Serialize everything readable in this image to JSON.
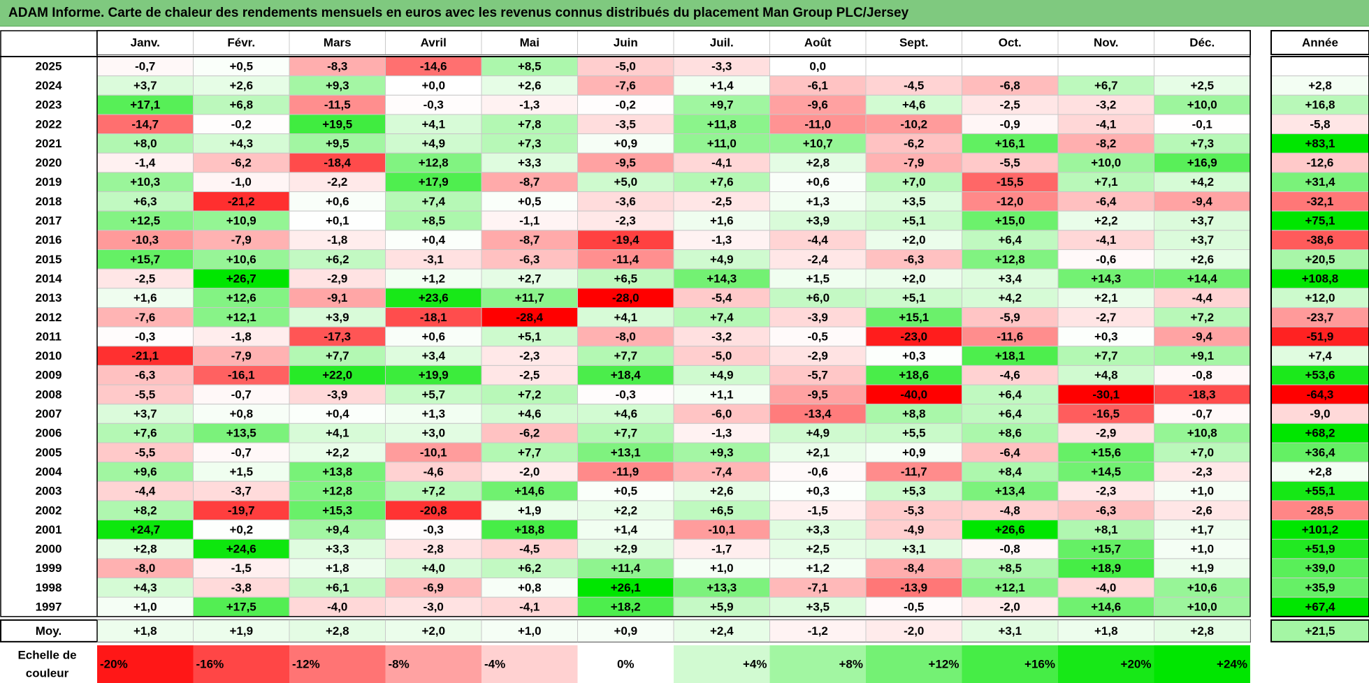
{
  "title": "ADAM Informe. Carte de chaleur des rendements mensuels en euros avec les revenus connus distribués du placement Man Group PLC/Jersey",
  "colors": {
    "title_bg": "#7fc97f",
    "negative_max": "#ff0000",
    "neutral": "#ffffff",
    "positive_max": "#00e600"
  },
  "chart_data": {
    "type": "heatmap",
    "months": [
      "Janv.",
      "Févr.",
      "Mars",
      "Avril",
      "Mai",
      "Juin",
      "Juil.",
      "Août",
      "Sept.",
      "Oct.",
      "Nov.",
      "Déc."
    ],
    "annual_header": "Année",
    "rows": [
      {
        "year": "2025",
        "values": [
          "-0,7",
          "+0,5",
          "-8,3",
          "-14,6",
          "+8,5",
          "-5,0",
          "-3,3",
          "0,0",
          "",
          "",
          "",
          ""
        ],
        "annual": ""
      },
      {
        "year": "2024",
        "values": [
          "+3,7",
          "+2,6",
          "+9,3",
          "+0,0",
          "+2,6",
          "-7,6",
          "+1,4",
          "-6,1",
          "-4,5",
          "-6,8",
          "+6,7",
          "+2,5"
        ],
        "annual": "+2,8"
      },
      {
        "year": "2023",
        "values": [
          "+17,1",
          "+6,8",
          "-11,5",
          "-0,3",
          "-1,3",
          "-0,2",
          "+9,7",
          "-9,6",
          "+4,6",
          "-2,5",
          "-3,2",
          "+10,0"
        ],
        "annual": "+16,8"
      },
      {
        "year": "2022",
        "values": [
          "-14,7",
          "-0,2",
          "+19,5",
          "+4,1",
          "+7,8",
          "-3,5",
          "+11,8",
          "-11,0",
          "-10,2",
          "-0,9",
          "-4,1",
          "-0,1"
        ],
        "annual": "-5,8"
      },
      {
        "year": "2021",
        "values": [
          "+8,0",
          "+4,3",
          "+9,5",
          "+4,9",
          "+7,3",
          "+0,9",
          "+11,0",
          "+10,7",
          "-6,2",
          "+16,1",
          "-8,2",
          "+7,3"
        ],
        "annual": "+83,1"
      },
      {
        "year": "2020",
        "values": [
          "-1,4",
          "-6,2",
          "-18,4",
          "+12,8",
          "+3,3",
          "-9,5",
          "-4,1",
          "+2,8",
          "-7,9",
          "-5,5",
          "+10,0",
          "+16,9"
        ],
        "annual": "-12,6"
      },
      {
        "year": "2019",
        "values": [
          "+10,3",
          "-1,0",
          "-2,2",
          "+17,9",
          "-8,7",
          "+5,0",
          "+7,6",
          "+0,6",
          "+7,0",
          "-15,5",
          "+7,1",
          "+4,2"
        ],
        "annual": "+31,4"
      },
      {
        "year": "2018",
        "values": [
          "+6,3",
          "-21,2",
          "+0,6",
          "+7,4",
          "+0,5",
          "-3,6",
          "-2,5",
          "+1,3",
          "+3,5",
          "-12,0",
          "-6,4",
          "-9,4"
        ],
        "annual": "-32,1"
      },
      {
        "year": "2017",
        "values": [
          "+12,5",
          "+10,9",
          "+0,1",
          "+8,5",
          "-1,1",
          "-2,3",
          "+1,6",
          "+3,9",
          "+5,1",
          "+15,0",
          "+2,2",
          "+3,7"
        ],
        "annual": "+75,1"
      },
      {
        "year": "2016",
        "values": [
          "-10,3",
          "-7,9",
          "-1,8",
          "+0,4",
          "-8,7",
          "-19,4",
          "-1,3",
          "-4,4",
          "+2,0",
          "+6,4",
          "-4,1",
          "+3,7"
        ],
        "annual": "-38,6"
      },
      {
        "year": "2015",
        "values": [
          "+15,7",
          "+10,6",
          "+6,2",
          "-3,1",
          "-6,3",
          "-11,4",
          "+4,9",
          "-2,4",
          "-6,3",
          "+12,8",
          "-0,6",
          "+2,6"
        ],
        "annual": "+20,5"
      },
      {
        "year": "2014",
        "values": [
          "-2,5",
          "+26,7",
          "-2,9",
          "+1,2",
          "+2,7",
          "+6,5",
          "+14,3",
          "+1,5",
          "+2,0",
          "+3,4",
          "+14,3",
          "+14,4"
        ],
        "annual": "+108,8"
      },
      {
        "year": "2013",
        "values": [
          "+1,6",
          "+12,6",
          "-9,1",
          "+23,6",
          "+11,7",
          "-28,0",
          "-5,4",
          "+6,0",
          "+5,1",
          "+4,2",
          "+2,1",
          "-4,4"
        ],
        "annual": "+12,0"
      },
      {
        "year": "2012",
        "values": [
          "-7,6",
          "+12,1",
          "+3,9",
          "-18,1",
          "-28,4",
          "+4,1",
          "+7,4",
          "-3,9",
          "+15,1",
          "-5,9",
          "-2,7",
          "+7,2"
        ],
        "annual": "-23,7"
      },
      {
        "year": "2011",
        "values": [
          "-0,3",
          "-1,8",
          "-17,3",
          "+0,6",
          "+5,1",
          "-8,0",
          "-3,2",
          "-0,5",
          "-23,0",
          "-11,6",
          "+0,3",
          "-9,4"
        ],
        "annual": "-51,9"
      },
      {
        "year": "2010",
        "values": [
          "-21,1",
          "-7,9",
          "+7,7",
          "+3,4",
          "-2,3",
          "+7,7",
          "-5,0",
          "-2,9",
          "+0,3",
          "+18,1",
          "+7,7",
          "+9,1"
        ],
        "annual": "+7,4"
      },
      {
        "year": "2009",
        "values": [
          "-6,3",
          "-16,1",
          "+22,0",
          "+19,9",
          "-2,5",
          "+18,4",
          "+4,9",
          "-5,7",
          "+18,6",
          "-4,6",
          "+4,8",
          "-0,8"
        ],
        "annual": "+53,6"
      },
      {
        "year": "2008",
        "values": [
          "-5,5",
          "-0,7",
          "-3,9",
          "+5,7",
          "+7,2",
          "-0,3",
          "+1,1",
          "-9,5",
          "-40,0",
          "+6,4",
          "-30,1",
          "-18,3"
        ],
        "annual": "-64,3"
      },
      {
        "year": "2007",
        "values": [
          "+3,7",
          "+0,8",
          "+0,4",
          "+1,3",
          "+4,6",
          "+4,6",
          "-6,0",
          "-13,4",
          "+8,8",
          "+6,4",
          "-16,5",
          "-0,7"
        ],
        "annual": "-9,0"
      },
      {
        "year": "2006",
        "values": [
          "+7,6",
          "+13,5",
          "+4,1",
          "+3,0",
          "-6,2",
          "+7,7",
          "-1,3",
          "+4,9",
          "+5,5",
          "+8,6",
          "-2,9",
          "+10,8"
        ],
        "annual": "+68,2"
      },
      {
        "year": "2005",
        "values": [
          "-5,5",
          "-0,7",
          "+2,2",
          "-10,1",
          "+7,7",
          "+13,1",
          "+9,3",
          "+2,1",
          "+0,9",
          "-6,4",
          "+15,6",
          "+7,0"
        ],
        "annual": "+36,4"
      },
      {
        "year": "2004",
        "values": [
          "+9,6",
          "+1,5",
          "+13,8",
          "-4,6",
          "-2,0",
          "-11,9",
          "-7,4",
          "-0,6",
          "-11,7",
          "+8,4",
          "+14,5",
          "-2,3"
        ],
        "annual": "+2,8"
      },
      {
        "year": "2003",
        "values": [
          "-4,4",
          "-3,7",
          "+12,8",
          "+7,2",
          "+14,6",
          "+0,5",
          "+2,6",
          "+0,3",
          "+5,3",
          "+13,4",
          "-2,3",
          "+1,0"
        ],
        "annual": "+55,1"
      },
      {
        "year": "2002",
        "values": [
          "+8,2",
          "-19,7",
          "+15,3",
          "-20,8",
          "+1,9",
          "+2,2",
          "+6,5",
          "-1,5",
          "-5,3",
          "-4,8",
          "-6,3",
          "-2,6"
        ],
        "annual": "-28,5"
      },
      {
        "year": "2001",
        "values": [
          "+24,7",
          "+0,2",
          "+9,4",
          "-0,3",
          "+18,8",
          "+1,4",
          "-10,1",
          "+3,3",
          "-4,9",
          "+26,6",
          "+8,1",
          "+1,7"
        ],
        "annual": "+101,2"
      },
      {
        "year": "2000",
        "values": [
          "+2,8",
          "+24,6",
          "+3,3",
          "-2,8",
          "-4,5",
          "+2,9",
          "-1,7",
          "+2,5",
          "+3,1",
          "-0,8",
          "+15,7",
          "+1,0"
        ],
        "annual": "+51,9"
      },
      {
        "year": "1999",
        "values": [
          "-8,0",
          "-1,5",
          "+1,8",
          "+4,0",
          "+6,2",
          "+11,4",
          "+1,0",
          "+1,2",
          "-8,4",
          "+8,5",
          "+18,9",
          "+1,9"
        ],
        "annual": "+39,0"
      },
      {
        "year": "1998",
        "values": [
          "+4,3",
          "-3,8",
          "+6,1",
          "-6,9",
          "+0,8",
          "+26,1",
          "+13,3",
          "-7,1",
          "-13,9",
          "+12,1",
          "-4,0",
          "+10,6"
        ],
        "annual": "+35,9"
      },
      {
        "year": "1997",
        "values": [
          "+1,0",
          "+17,5",
          "-4,0",
          "-3,0",
          "-4,1",
          "+18,2",
          "+5,9",
          "+3,5",
          "-0,5",
          "-2,0",
          "+14,6",
          "+10,0"
        ],
        "annual": "+67,4"
      }
    ],
    "average": {
      "label": "Moy.",
      "values": [
        "+1,8",
        "+1,9",
        "+2,8",
        "+2,0",
        "+1,0",
        "+0,9",
        "+2,4",
        "-1,2",
        "-2,0",
        "+3,1",
        "+1,8",
        "+2,8"
      ],
      "annual": "+21,5"
    },
    "scale": {
      "label": [
        "Echelle de",
        "couleur"
      ],
      "items": [
        {
          "label": "-20%",
          "value": -20
        },
        {
          "label": "-16%",
          "value": -16
        },
        {
          "label": "-12%",
          "value": -12
        },
        {
          "label": "-8%",
          "value": -8
        },
        {
          "label": "-4%",
          "value": -4
        },
        {
          "label": "0%",
          "value": 0
        },
        {
          "label": "+4%",
          "value": 4
        },
        {
          "label": "+8%",
          "value": 8
        },
        {
          "label": "+12%",
          "value": 12
        },
        {
          "label": "+16%",
          "value": 16
        },
        {
          "label": "+20%",
          "value": 20
        },
        {
          "label": "+24%",
          "value": 24
        }
      ]
    }
  }
}
